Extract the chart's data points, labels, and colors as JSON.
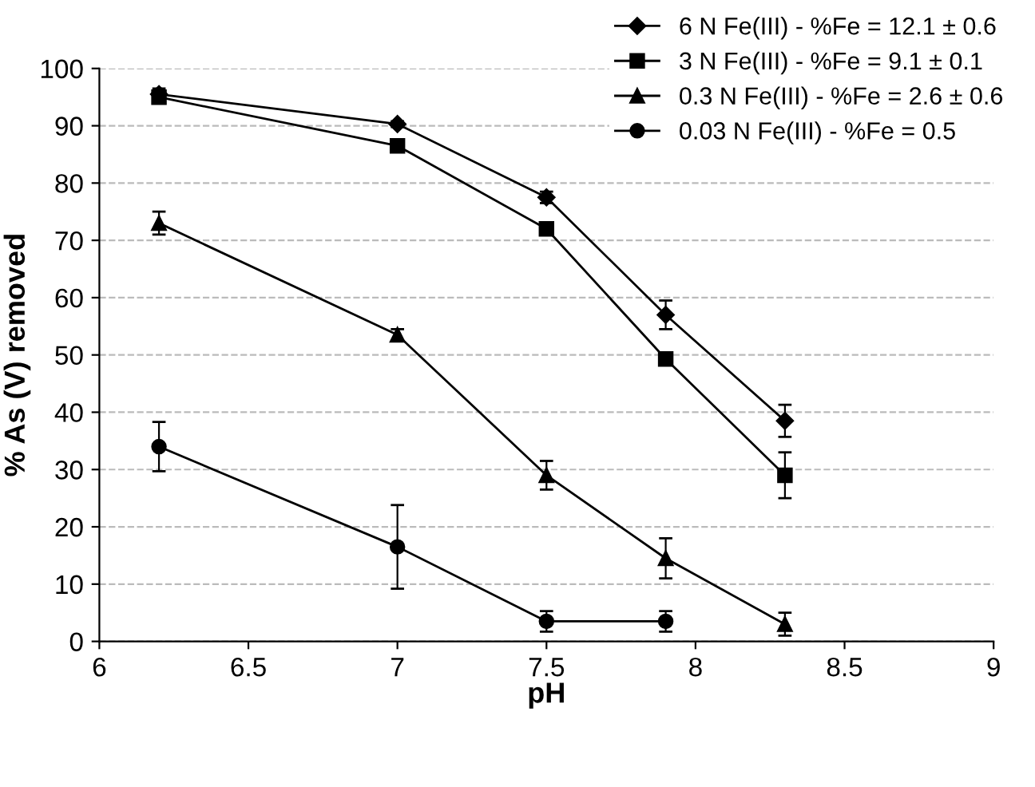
{
  "chart_data": {
    "type": "line",
    "xlabel": "pH",
    "ylabel": "% As (V) removed",
    "x": [
      6.2,
      7,
      7.5,
      7.9,
      8.3
    ],
    "series": [
      {
        "name": "6 N Fe(III) - %Fe = 12.1 ± 0.6",
        "color": "#000000",
        "marker": "diamond",
        "values": [
          95.5,
          90.3,
          77.5,
          57,
          38.5
        ],
        "errors": [
          1,
          0.5,
          1,
          2.5,
          2.8
        ]
      },
      {
        "name": "3 N Fe(III) - %Fe = 9.1 ± 0.1",
        "color": "#000000",
        "marker": "square",
        "values": [
          95,
          86.5,
          72,
          49.3,
          29
        ],
        "errors": [
          1,
          1,
          1,
          1,
          4
        ]
      },
      {
        "name": "0.3 N Fe(III) - %Fe = 2.6 ± 0.6",
        "color": "#000000",
        "marker": "triangle",
        "values": [
          73,
          53.5,
          29,
          14.5,
          3
        ],
        "errors": [
          2,
          1,
          2.5,
          3.5,
          2
        ]
      },
      {
        "name": "0.03 N Fe(III) - %Fe = 0.5",
        "color": "#000000",
        "marker": "circle",
        "values": [
          34,
          16.5,
          3.5,
          3.5,
          null
        ],
        "errors": [
          4.3,
          7.3,
          1.8,
          1.8,
          null
        ]
      }
    ],
    "xlim": [
      6,
      9
    ],
    "xticks": [
      6,
      6.5,
      7,
      7.5,
      8,
      8.5,
      9
    ],
    "ylim": [
      0,
      100
    ],
    "yticks": [
      0,
      10,
      20,
      30,
      40,
      50,
      60,
      70,
      80,
      90,
      100
    ],
    "grid": "y",
    "legend": "top right",
    "line_style": "solid"
  }
}
